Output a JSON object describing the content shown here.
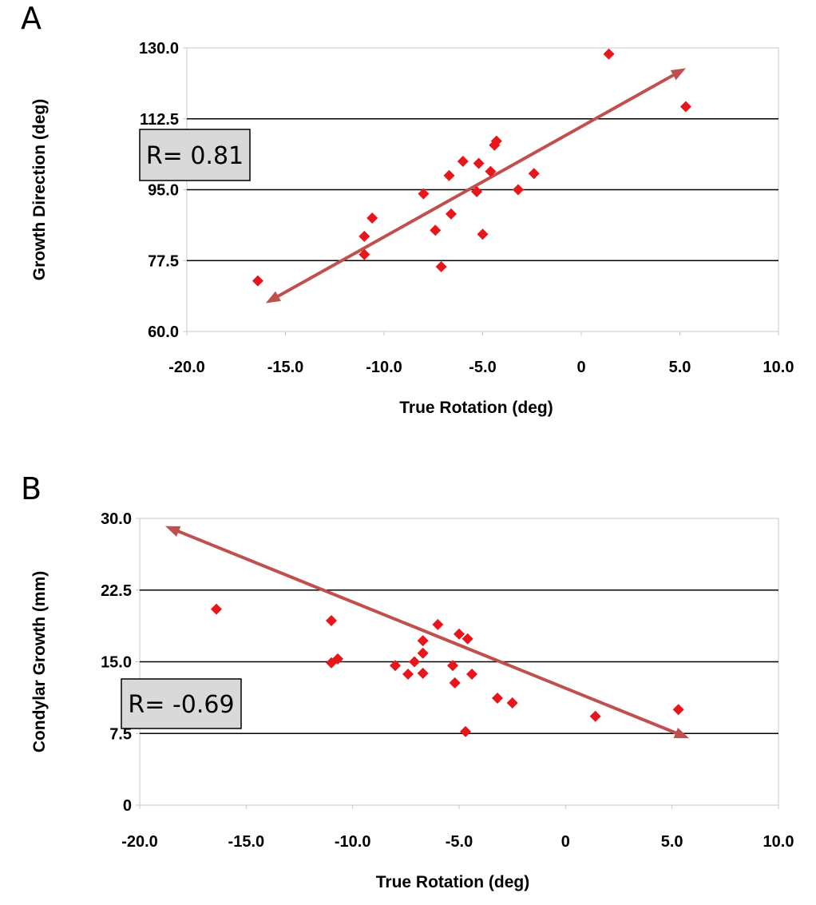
{
  "chart_data": [
    {
      "type": "scatter",
      "panel": "A",
      "title": "",
      "xlabel": "True Rotation (deg)",
      "ylabel": "Growth Direction  (deg)",
      "xlim": [
        -20,
        10
      ],
      "ylim": [
        60,
        130
      ],
      "x_ticks": [
        "-20.0",
        "-15.0",
        "-10.0",
        "-5.0",
        "0",
        "5.0",
        "10.0"
      ],
      "y_ticks": [
        "60.0",
        "77.5",
        "95.0",
        "112.5",
        "130.0"
      ],
      "grid": "horizontal",
      "annotation": "R= 0.81",
      "marker_color": "#e8151b",
      "trend_color": "#c0504d",
      "trendline": {
        "x": [
          -16.0,
          5.3
        ],
        "y": [
          67.0,
          125.0
        ],
        "arrows": "both"
      },
      "points": {
        "x": [
          -16.4,
          -11.0,
          -11.0,
          -10.6,
          -8.0,
          -7.4,
          -7.1,
          -6.7,
          -6.6,
          -6.0,
          -5.3,
          -5.2,
          -5.0,
          -4.6,
          -4.4,
          -4.3,
          -3.2,
          -2.4,
          1.4,
          5.3
        ],
        "y": [
          72.5,
          79.0,
          83.5,
          88.0,
          94.0,
          85.0,
          76.0,
          98.5,
          89.0,
          102.0,
          94.5,
          101.5,
          84.0,
          99.5,
          106.0,
          107.0,
          95.0,
          99.0,
          128.5,
          115.5
        ]
      }
    },
    {
      "type": "scatter",
      "panel": "B",
      "title": "",
      "xlabel": "True Rotation (deg)",
      "ylabel": "Condylar Growth (mm)",
      "xlim": [
        -20,
        10
      ],
      "ylim": [
        0,
        30
      ],
      "x_ticks": [
        "-20.0",
        "-15.0",
        "-10.0",
        "-5.0",
        "0",
        "5.0",
        "10.0"
      ],
      "y_ticks": [
        "0",
        "7.5",
        "15.0",
        "22.5",
        "30.0"
      ],
      "grid": "horizontal",
      "annotation": "R= -0.69",
      "marker_color": "#e8151b",
      "trend_color": "#c0504d",
      "trendline": {
        "x": [
          -18.8,
          5.8
        ],
        "y": [
          29.2,
          7.0
        ],
        "arrows": "both"
      },
      "points": {
        "x": [
          -16.4,
          -11.0,
          -11.0,
          -10.7,
          -8.0,
          -7.4,
          -7.1,
          -6.7,
          -6.7,
          -6.7,
          -6.0,
          -5.3,
          -5.2,
          -5.0,
          -4.7,
          -4.6,
          -4.4,
          -3.2,
          -2.5,
          1.4,
          5.3
        ],
        "y": [
          20.5,
          19.3,
          14.9,
          15.3,
          14.6,
          13.7,
          15.0,
          13.8,
          15.9,
          17.2,
          18.9,
          14.6,
          12.8,
          17.9,
          7.7,
          17.4,
          13.7,
          11.2,
          10.7,
          9.3,
          10.0
        ]
      }
    }
  ]
}
